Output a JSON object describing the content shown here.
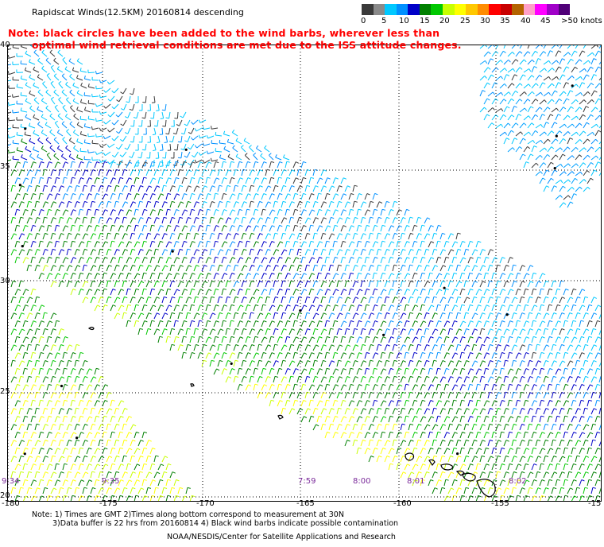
{
  "title": "Rapidscat Winds(12.5KM) 20160814 descending",
  "note": {
    "line1": "Note: black circles have been added to the wind barbs, wherever less than",
    "line2": "optimal wind retrieval conditions are met due to the ISS attitude changes."
  },
  "legend": {
    "colors": [
      "#3a3a3a",
      "#8a8a8a",
      "#00c8ff",
      "#0090ff",
      "#0000c8",
      "#008000",
      "#00c800",
      "#c8ff00",
      "#ffff00",
      "#ffc800",
      "#ff8c00",
      "#ff0000",
      "#c80000",
      "#b46400",
      "#ffa0c8",
      "#ff00ff",
      "#a000c8",
      "#500078"
    ],
    "labels": [
      "0",
      "5",
      "10",
      "15",
      "20",
      "25",
      "30",
      "35",
      "40",
      "45",
      ">50 knots"
    ]
  },
  "lat_labels": [
    "40",
    "35",
    "30",
    "25",
    "20"
  ],
  "lon_labels": [
    "-180",
    "-175",
    "-170",
    "-165",
    "-160",
    "-155",
    "-15"
  ],
  "time_labels": [
    "9:34",
    "9:35",
    "7:59",
    "8:00",
    "8:01",
    "8:02"
  ],
  "footer": {
    "line1": "Note: 1) Times are GMT 2)Times along bottom correspond to measurement at 30N",
    "line2": "3)Data buffer is 22 hrs from 20160814 4) Black wind barbs indicate possible contamination",
    "credit": "NOAA/NESDIS/Center for Satellite Applications and Research"
  }
}
